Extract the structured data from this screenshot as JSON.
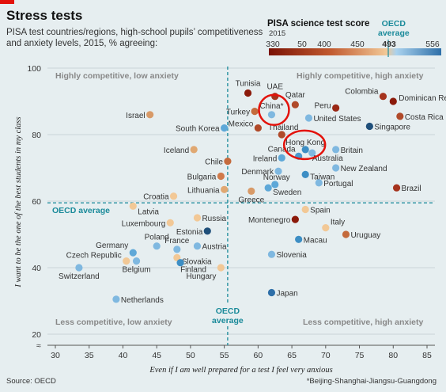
{
  "title": "Stress tests",
  "subtitle": "PISA test countries/regions, high-school pupils’ competitiveness and anxiety levels, 2015, % agreeing:",
  "legend": {
    "title": "PISA science test score",
    "year": "2015",
    "ticks": [
      "330",
      "50",
      "400",
      "450",
      "493",
      "556"
    ],
    "oecd_label_1": "OECD",
    "oecd_label_2": "average"
  },
  "source": "Source: OECD",
  "footnote": "*Beijing-Shanghai-Jiangsu-Guangdong",
  "colors": {
    "low": "#8b1a0a",
    "mid": "#f2c896",
    "high": "#2e6fa8",
    "oecd_line": "#1a8a9a",
    "red_circle": "#e3120b"
  },
  "chart_data": {
    "type": "scatter",
    "xlabel": "Even if I am well prepared for a test I feel very anxious",
    "ylabel": "I want to be the one of the best students in my class",
    "xlim": [
      30,
      85
    ],
    "ylim": [
      20,
      100
    ],
    "xticks": [
      "30",
      "35",
      "40",
      "45",
      "50",
      "55",
      "60",
      "65",
      "70",
      "75",
      "80",
      "85"
    ],
    "yticks": [
      "20",
      "40",
      "60",
      "80",
      "100"
    ],
    "oecd_x": 55.5,
    "oecd_y": 59.5,
    "oecd_y_label": "OECD average",
    "oecd_x_label_1": "OECD",
    "oecd_x_label_2": "average",
    "quadrants": {
      "top_left": "Highly competitive, low anxiety",
      "top_right": "Highly competitive, high anxiety",
      "bottom_left": "Less competitive, low anxiety",
      "bottom_right": "Less competitive, high anxiety"
    },
    "points": [
      {
        "name": "Tunisia",
        "x": 58.5,
        "y": 92.5,
        "color": "#8b1a0a"
      },
      {
        "name": "UAE",
        "x": 62.5,
        "y": 91.5,
        "color": "#a5331d"
      },
      {
        "name": "Qatar",
        "x": 65.5,
        "y": 89.0,
        "color": "#b04a2a"
      },
      {
        "name": "Colombia",
        "x": 78.5,
        "y": 91.5,
        "color": "#a5331d"
      },
      {
        "name": "Dominican Republic",
        "x": 80.0,
        "y": 90.0,
        "color": "#8b1a0a"
      },
      {
        "name": "Peru",
        "x": 71.5,
        "y": 88.0,
        "color": "#9a2815"
      },
      {
        "name": "Turkey",
        "x": 59.5,
        "y": 87.0,
        "color": "#c46a3c"
      },
      {
        "name": "China*",
        "x": 62.0,
        "y": 86.0,
        "color": "#7fb8e0"
      },
      {
        "name": "United States",
        "x": 67.5,
        "y": 85.0,
        "color": "#7fb8e0"
      },
      {
        "name": "Costa Rica",
        "x": 81.0,
        "y": 85.5,
        "color": "#b04a2a"
      },
      {
        "name": "Israel",
        "x": 44.0,
        "y": 86.0,
        "color": "#d89a68"
      },
      {
        "name": "Mexico",
        "x": 60.0,
        "y": 82.0,
        "color": "#b04a2a"
      },
      {
        "name": "South Korea",
        "x": 55.0,
        "y": 82.0,
        "color": "#5ea8d8"
      },
      {
        "name": "Thailand",
        "x": 63.5,
        "y": 80.0,
        "color": "#b04a2a"
      },
      {
        "name": "Singapore",
        "x": 76.5,
        "y": 82.5,
        "color": "#1f4f7a"
      },
      {
        "name": "Hong Kong",
        "x": 67.0,
        "y": 75.5,
        "color": "#3d8ec4"
      },
      {
        "name": "Canada",
        "x": 66.0,
        "y": 73.5,
        "color": "#4a98cf"
      },
      {
        "name": "Australia",
        "x": 68.0,
        "y": 74.5,
        "color": "#7fb8e0"
      },
      {
        "name": "Britain",
        "x": 71.5,
        "y": 75.5,
        "color": "#7fb8e0"
      },
      {
        "name": "Ireland",
        "x": 63.5,
        "y": 73.0,
        "color": "#5ea8d8"
      },
      {
        "name": "Chile",
        "x": 55.5,
        "y": 72.0,
        "color": "#c46a3c"
      },
      {
        "name": "Iceland",
        "x": 50.5,
        "y": 75.5,
        "color": "#e0a872"
      },
      {
        "name": "Denmark",
        "x": 63.0,
        "y": 69.0,
        "color": "#7fb8e0"
      },
      {
        "name": "Taiwan",
        "x": 67.0,
        "y": 68.0,
        "color": "#3d8ec4"
      },
      {
        "name": "New Zealand",
        "x": 71.5,
        "y": 70.0,
        "color": "#7fb8e0"
      },
      {
        "name": "Bulgaria",
        "x": 54.5,
        "y": 67.5,
        "color": "#d07a4a"
      },
      {
        "name": "Norway",
        "x": 62.5,
        "y": 65.0,
        "color": "#5ea8d8"
      },
      {
        "name": "Portugal",
        "x": 69.0,
        "y": 65.5,
        "color": "#7fb8e0"
      },
      {
        "name": "Brazil",
        "x": 80.5,
        "y": 64.0,
        "color": "#a5331d"
      },
      {
        "name": "Lithuania",
        "x": 55.0,
        "y": 63.5,
        "color": "#e0a872"
      },
      {
        "name": "Sweden",
        "x": 61.5,
        "y": 64.0,
        "color": "#5ea8d8"
      },
      {
        "name": "Greece",
        "x": 59.0,
        "y": 63.0,
        "color": "#d89a68"
      },
      {
        "name": "Croatia",
        "x": 47.5,
        "y": 61.5,
        "color": "#f2c896"
      },
      {
        "name": "Latvia",
        "x": 41.5,
        "y": 58.5,
        "color": "#f2c896"
      },
      {
        "name": "Russia",
        "x": 51.0,
        "y": 55.0,
        "color": "#f2c896"
      },
      {
        "name": "Spain",
        "x": 67.0,
        "y": 57.5,
        "color": "#f2c896"
      },
      {
        "name": "Luxembourg",
        "x": 47.0,
        "y": 53.5,
        "color": "#f2c896"
      },
      {
        "name": "Montenegro",
        "x": 65.5,
        "y": 54.5,
        "color": "#8b1a0a"
      },
      {
        "name": "Italy",
        "x": 70.0,
        "y": 52.0,
        "color": "#f2c896"
      },
      {
        "name": "Estonia",
        "x": 52.5,
        "y": 51.0,
        "color": "#1f4f7a"
      },
      {
        "name": "Uruguay",
        "x": 73.0,
        "y": 50.0,
        "color": "#c46a3c"
      },
      {
        "name": "Poland",
        "x": 45.0,
        "y": 46.5,
        "color": "#7fb8e0"
      },
      {
        "name": "France",
        "x": 48.0,
        "y": 45.5,
        "color": "#7fb8e0"
      },
      {
        "name": "Germany",
        "x": 41.5,
        "y": 44.5,
        "color": "#5ea8d8"
      },
      {
        "name": "Austria",
        "x": 51.0,
        "y": 46.5,
        "color": "#7fb8e0"
      },
      {
        "name": "Macau",
        "x": 66.0,
        "y": 48.5,
        "color": "#3d8ec4"
      },
      {
        "name": "Czech Republic",
        "x": 40.5,
        "y": 42.0,
        "color": "#f2c896"
      },
      {
        "name": "Slovakia",
        "x": 48.0,
        "y": 43.0,
        "color": "#f2c896"
      },
      {
        "name": "Slovenia",
        "x": 62.0,
        "y": 44.0,
        "color": "#7fb8e0"
      },
      {
        "name": "Belgium",
        "x": 42.0,
        "y": 42.0,
        "color": "#7fb8e0"
      },
      {
        "name": "Switzerland",
        "x": 33.5,
        "y": 40.0,
        "color": "#7fb8e0"
      },
      {
        "name": "Finland",
        "x": 48.5,
        "y": 41.5,
        "color": "#3d8ec4"
      },
      {
        "name": "Hungary",
        "x": 54.5,
        "y": 40.0,
        "color": "#f2c896"
      },
      {
        "name": "Netherlands",
        "x": 39.0,
        "y": 30.5,
        "color": "#7fb8e0"
      },
      {
        "name": "Japan",
        "x": 62.0,
        "y": 32.5,
        "color": "#2e6fa8"
      }
    ],
    "highlighted": [
      "China*",
      "Hong Kong"
    ]
  }
}
